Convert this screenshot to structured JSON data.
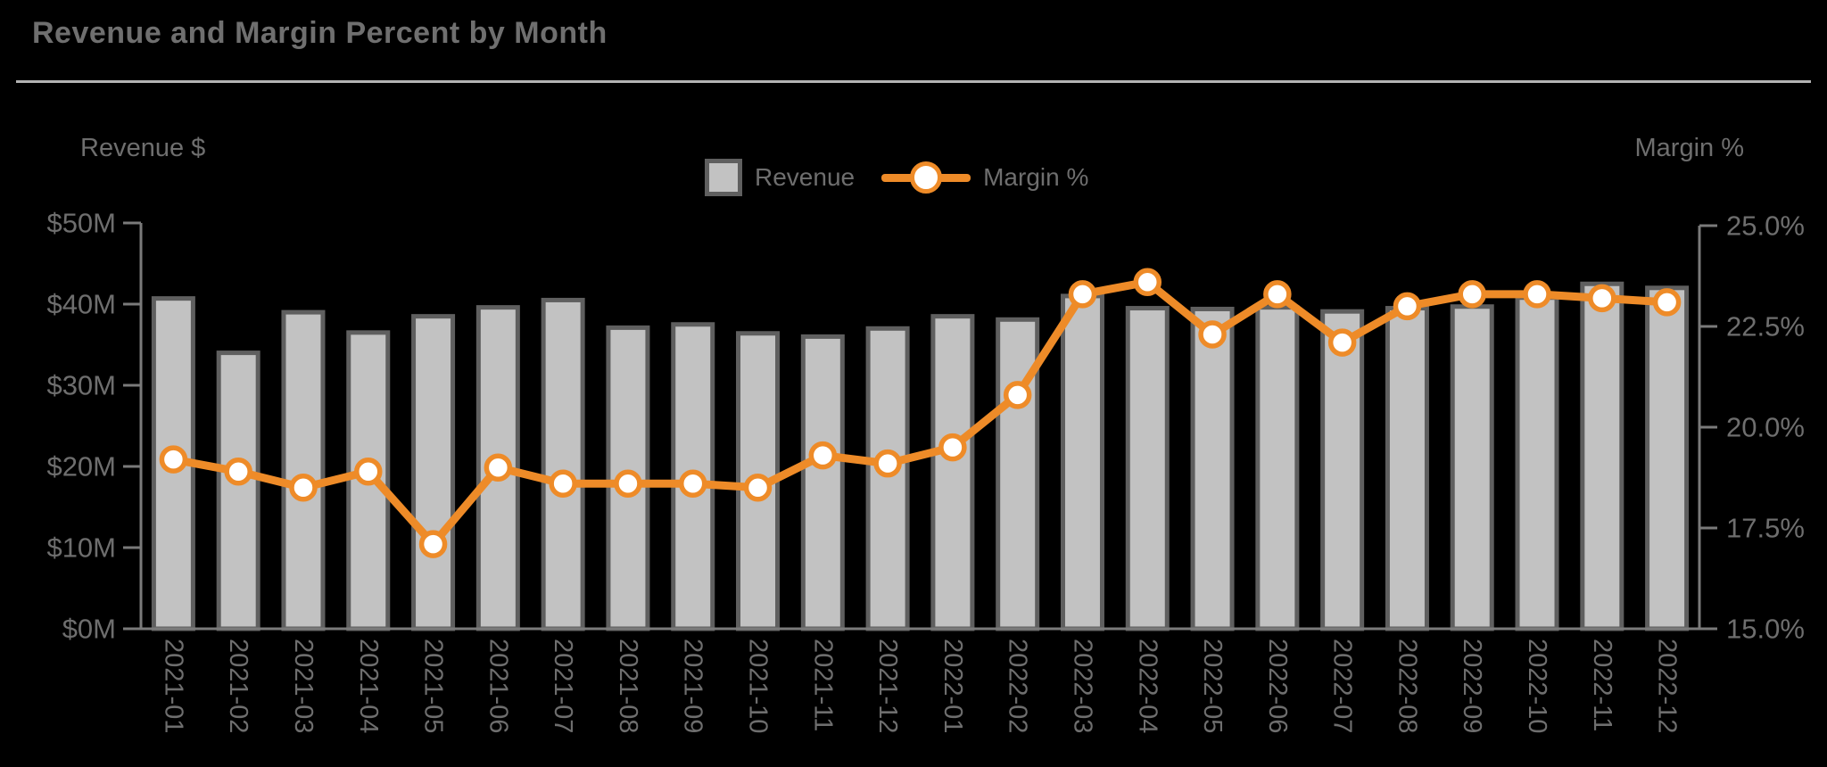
{
  "page": {
    "title": "Revenue and Margin Percent by Month"
  },
  "axes": {
    "left_title": "Revenue $",
    "right_title": "Margin %",
    "left_ticks": [
      "$50M",
      "$40M",
      "$30M",
      "$20M",
      "$10M",
      "$0M"
    ],
    "right_ticks": [
      "25.0%",
      "22.5%",
      "20.0%",
      "17.5%",
      "15.0%"
    ]
  },
  "legend": {
    "revenue": "Revenue",
    "margin": "Margin %"
  },
  "colors": {
    "background": "#000000",
    "bar_fill": "#c2c2c2",
    "bar_border": "#5f5f5f",
    "line": "#EE8B28",
    "marker_fill": "#ffffff",
    "text": "#6e6e6e",
    "axis": "#7a7a7a",
    "divider": "#b3b3b3"
  },
  "chart_data": {
    "type": "bar",
    "subtype": "bar-line-combo",
    "title": "Revenue and Margin Percent by Month",
    "categories": [
      "2021-01",
      "2021-02",
      "2021-03",
      "2021-04",
      "2021-05",
      "2021-06",
      "2021-07",
      "2021-08",
      "2021-09",
      "2021-10",
      "2021-11",
      "2021-12",
      "2022-01",
      "2022-02",
      "2022-03",
      "2022-04",
      "2022-05",
      "2022-06",
      "2022-07",
      "2022-08",
      "2022-09",
      "2022-10",
      "2022-11",
      "2022-12"
    ],
    "series": [
      {
        "name": "Revenue",
        "type": "bar",
        "axis": "left",
        "unit": "$M",
        "values": [
          40.7,
          34.0,
          39.0,
          36.5,
          38.5,
          39.6,
          40.5,
          37.1,
          37.5,
          36.4,
          36.0,
          37.0,
          38.5,
          38.1,
          41.0,
          39.5,
          39.4,
          39.6,
          39.1,
          39.5,
          39.7,
          40.8,
          42.5,
          42.0
        ]
      },
      {
        "name": "Margin %",
        "type": "line",
        "axis": "right",
        "unit": "%",
        "values": [
          19.2,
          18.9,
          18.5,
          18.9,
          17.1,
          19.0,
          18.6,
          18.6,
          18.6,
          18.5,
          19.3,
          19.1,
          19.5,
          20.8,
          23.3,
          23.6,
          22.3,
          23.3,
          22.1,
          23.0,
          23.3,
          23.3,
          23.2,
          23.1
        ]
      }
    ],
    "left_axis": {
      "label": "Revenue $",
      "min": 0,
      "max": 50,
      "tick_interval": 10,
      "tick_format": "$#M"
    },
    "right_axis": {
      "label": "Margin %",
      "min": 15,
      "max": 25,
      "tick_interval": 2.5,
      "tick_format": "#.#%"
    },
    "legend_position": "top-center",
    "grid": false
  }
}
